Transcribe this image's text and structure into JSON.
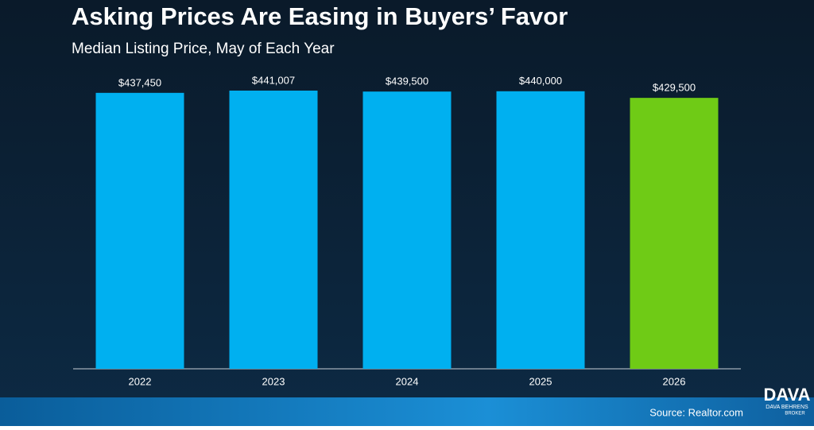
{
  "chart_data": {
    "type": "bar",
    "title": "Asking Prices Are Easing in Buyers’ Favor",
    "subtitle": "Median Listing Price, May of Each Year",
    "categories": [
      "2022",
      "2023",
      "2024",
      "2025",
      "2026"
    ],
    "values": [
      437450,
      441007,
      439500,
      440000,
      429500
    ],
    "value_labels": [
      "$437,450",
      "$441,007",
      "$439,500",
      "$440,000",
      "$429,500"
    ],
    "colors": [
      "#00b0f0",
      "#00b0f0",
      "#00b0f0",
      "#00b0f0",
      "#6fcb16"
    ],
    "source": "Source: Realtor.com"
  },
  "logo": {
    "mark": "DAVA",
    "name": "DAVA BEHRENS",
    "role": "BROKER"
  }
}
